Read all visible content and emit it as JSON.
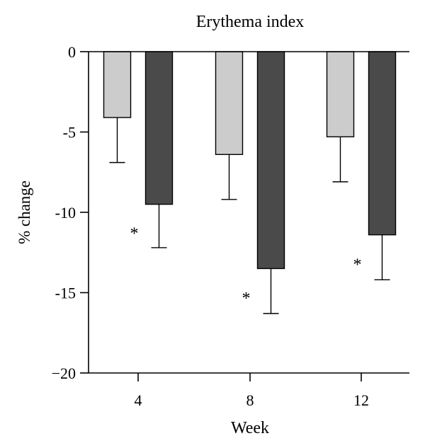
{
  "chart_data": {
    "type": "bar",
    "title": "Erythema index",
    "xlabel": "Week",
    "ylabel": "% change",
    "categories": [
      "4",
      "8",
      "12"
    ],
    "ylim": [
      -20,
      0
    ],
    "yticks": [
      0,
      -5,
      -10,
      -15,
      -20
    ],
    "ytick_labels": [
      "0",
      "-5",
      "-10",
      "-15",
      "−20"
    ],
    "grid": false,
    "legend": "none",
    "series": [
      {
        "color": "#cccccc",
        "values": [
          -4.1,
          -6.4,
          -5.3
        ],
        "error": [
          2.8,
          2.8,
          2.8
        ]
      },
      {
        "color": "#4a4a4a",
        "values": [
          -9.5,
          -13.5,
          -11.4
        ],
        "error": [
          2.7,
          2.8,
          2.8
        ]
      }
    ],
    "annotations": [
      {
        "text": "*",
        "category": "4",
        "series": 1
      },
      {
        "text": "*",
        "category": "8",
        "series": 1
      },
      {
        "text": "*",
        "category": "12",
        "series": 1
      }
    ]
  }
}
